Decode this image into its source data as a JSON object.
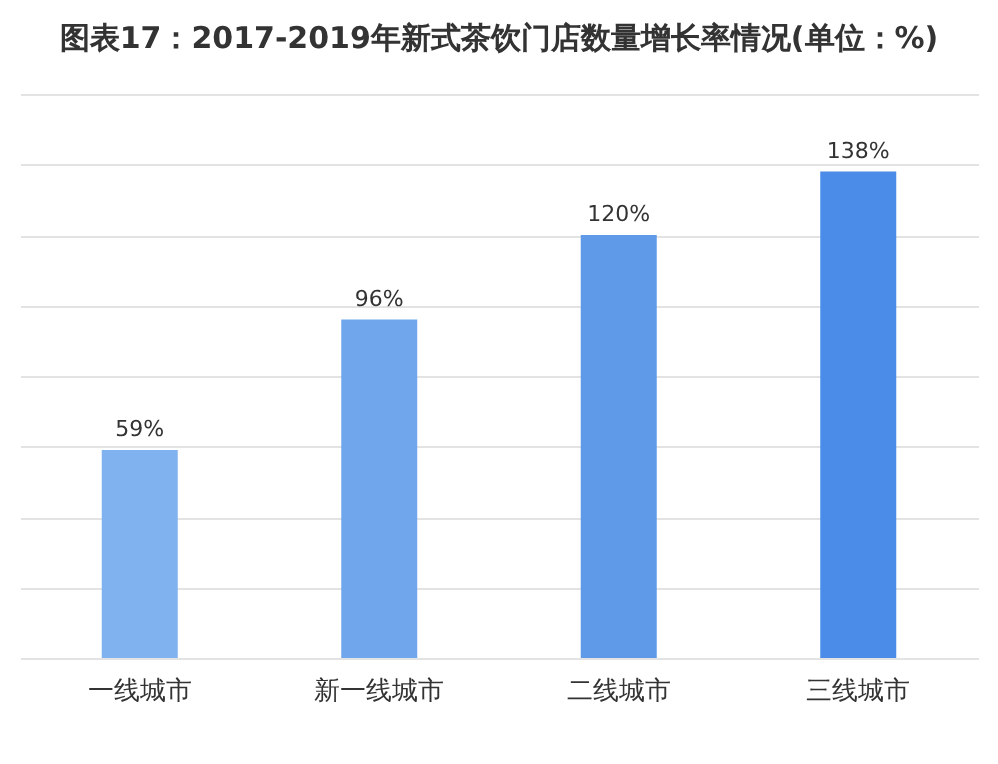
{
  "chart_data": {
    "type": "bar",
    "title": "图表17：2017-2019年新式茶饮门店数量增长率情况(单位：%)",
    "categories": [
      "一线城市",
      "新一线城市",
      "二线城市",
      "三线城市"
    ],
    "values": [
      59,
      96,
      120,
      138
    ],
    "colors": [
      "#80b2ef",
      "#6fa6ec",
      "#5f9ae8",
      "#4a8ce8"
    ],
    "value_labels": [
      "59%",
      "96%",
      "120%",
      "138%"
    ],
    "ylim": [
      0,
      160
    ],
    "grid": "y",
    "tick_labels": "x"
  }
}
